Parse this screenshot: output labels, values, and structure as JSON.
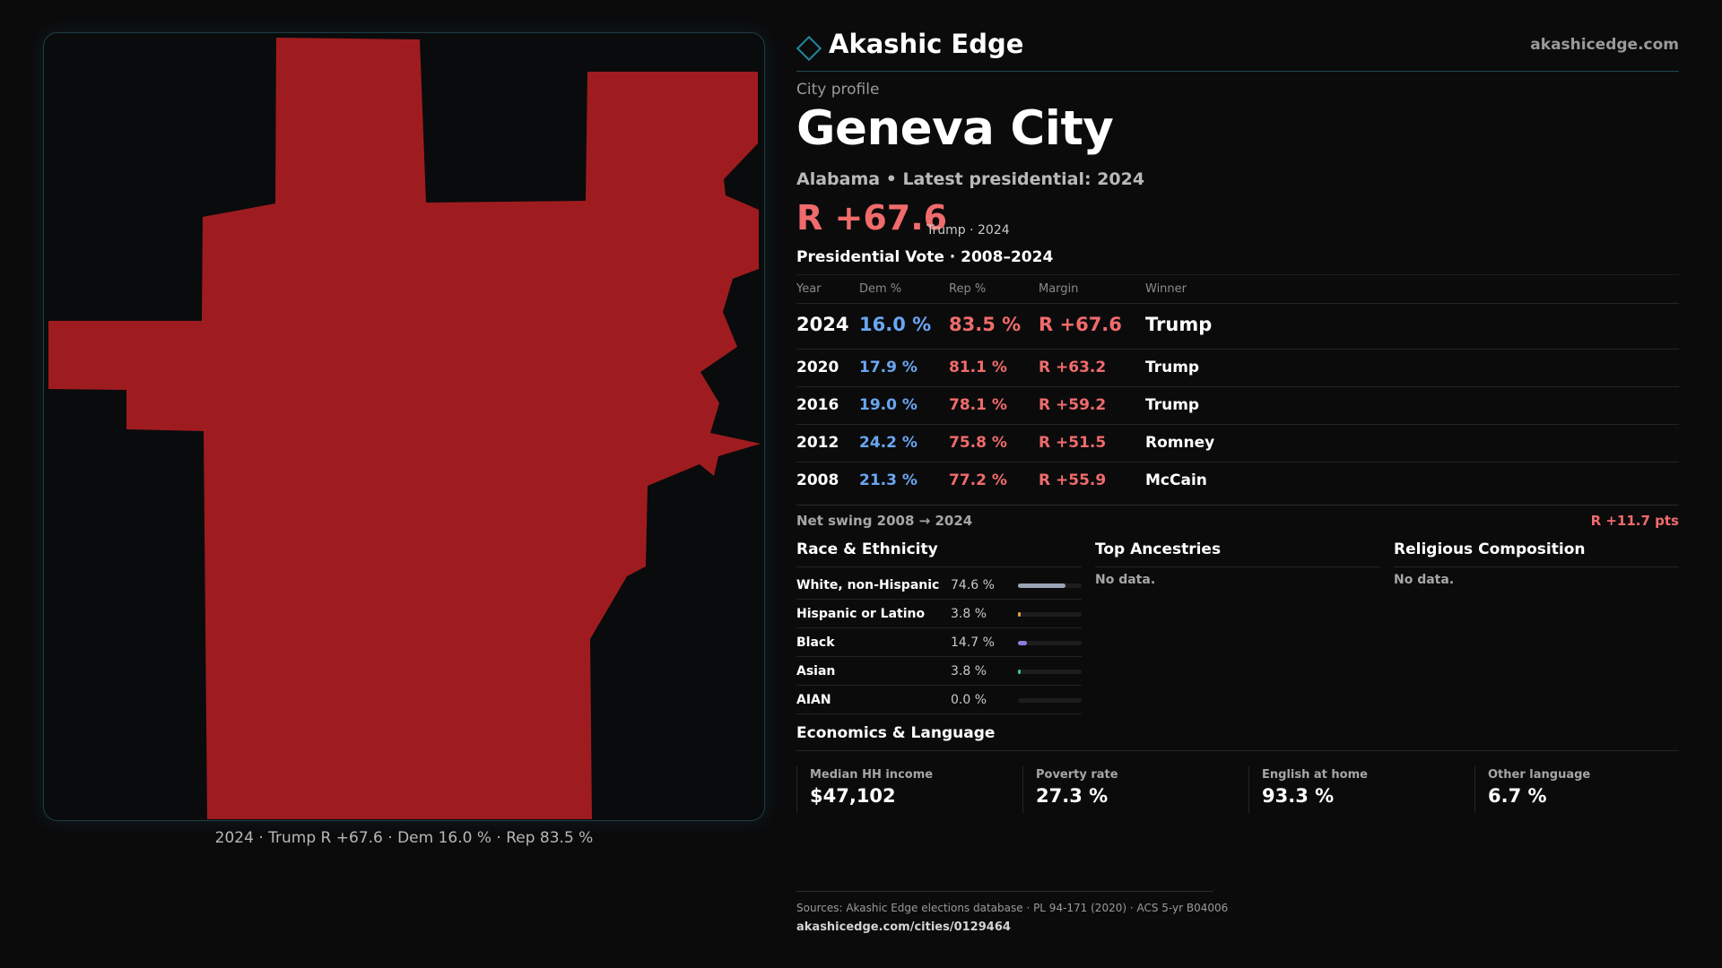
{
  "brand": {
    "name": "Akashic Edge",
    "site": "akashicedge.com",
    "logo_icon": "diamond-outline-icon"
  },
  "profile": {
    "eyebrow": "City profile",
    "city": "Geneva City",
    "subtitle": "Alabama • Latest presidential: 2024",
    "margin": "R +67.6",
    "margin_note": "Trump · 2024"
  },
  "map": {
    "caption": "2024 · Trump R +67.6 · Dem 16.0 % · Rep 83.5 %",
    "fill_color": "#9e1c1f"
  },
  "vote": {
    "title": "Presidential Vote · 2008–2024",
    "headers": {
      "year": "Year",
      "dem": "Dem %",
      "rep": "Rep %",
      "margin": "Margin",
      "winner": "Winner"
    },
    "rows": [
      {
        "year": "2024",
        "dem": "16.0 %",
        "rep": "83.5 %",
        "margin": "R +67.6",
        "winner": "Trump"
      },
      {
        "year": "2020",
        "dem": "17.9 %",
        "rep": "81.1 %",
        "margin": "R +63.2",
        "winner": "Trump"
      },
      {
        "year": "2016",
        "dem": "19.0 %",
        "rep": "78.1 %",
        "margin": "R +59.2",
        "winner": "Trump"
      },
      {
        "year": "2012",
        "dem": "24.2 %",
        "rep": "75.8 %",
        "margin": "R +51.5",
        "winner": "Romney"
      },
      {
        "year": "2008",
        "dem": "21.3 %",
        "rep": "77.2 %",
        "margin": "R +55.9",
        "winner": "McCain"
      }
    ],
    "swing_label": "Net swing 2008 → 2024",
    "swing_value": "R +11.7 pts"
  },
  "race": {
    "title": "Race & Ethnicity",
    "rows": [
      {
        "name": "White, non-Hispanic",
        "pct": "74.6 %",
        "value": 74.6,
        "color": "#9aa4b8"
      },
      {
        "name": "Hispanic or Latino",
        "pct": "3.8 %",
        "value": 3.8,
        "color": "#e0a33a"
      },
      {
        "name": "Black",
        "pct": "14.7 %",
        "value": 14.7,
        "color": "#8c7ee0"
      },
      {
        "name": "Asian",
        "pct": "3.8 %",
        "value": 3.8,
        "color": "#3fc48c"
      },
      {
        "name": "AIAN",
        "pct": "0.0 %",
        "value": 0.0,
        "color": "#c06060"
      }
    ]
  },
  "ancestries": {
    "title": "Top Ancestries",
    "empty": "No data."
  },
  "religion": {
    "title": "Religious Composition",
    "empty": "No data."
  },
  "economics": {
    "title": "Economics & Language",
    "cards": [
      {
        "label": "Median HH income",
        "value": "$47,102"
      },
      {
        "label": "Poverty rate",
        "value": "27.3 %"
      },
      {
        "label": "English at home",
        "value": "93.3 %"
      },
      {
        "label": "Other language",
        "value": "6.7 %"
      }
    ]
  },
  "sources": {
    "text": "Sources: Akashic Edge elections database · PL 94-171 (2020) · ACS 5-yr B04006",
    "url": "akashicedge.com/cities/0129464"
  }
}
